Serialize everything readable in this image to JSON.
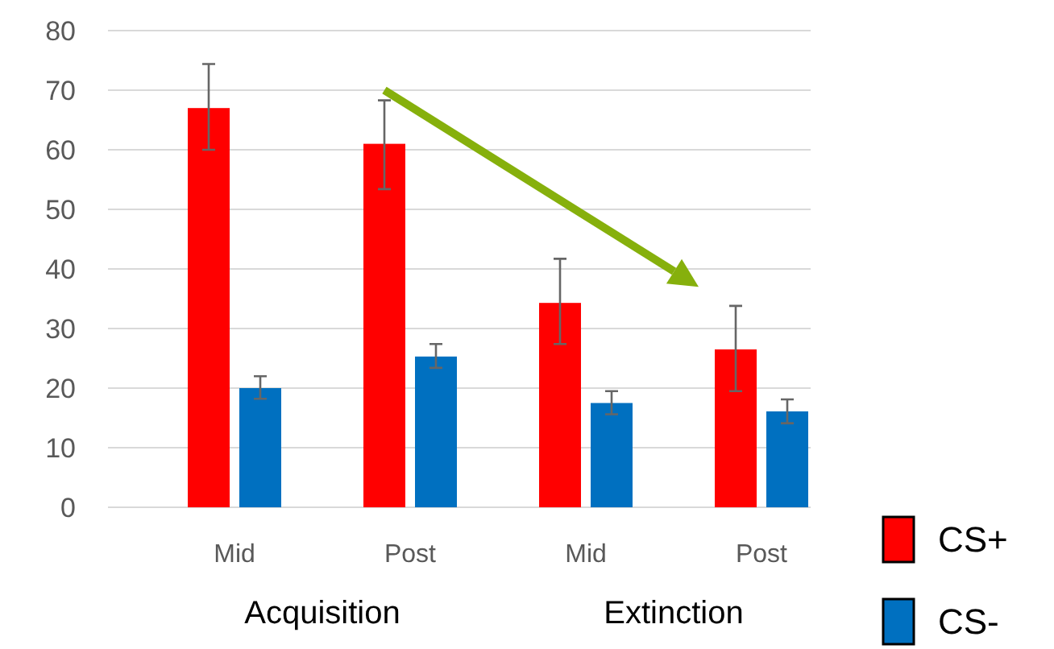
{
  "chart_data": {
    "type": "bar",
    "categories": [
      "Mid",
      "Post",
      "Mid",
      "Post"
    ],
    "series": [
      {
        "name": "CS+",
        "color": "#ff0000",
        "values": [
          67.0,
          61.0,
          34.3,
          26.5
        ],
        "errors": [
          [
            60.0,
            74.4
          ],
          [
            53.4,
            68.3
          ],
          [
            27.4,
            41.7
          ],
          [
            19.5,
            33.8
          ]
        ]
      },
      {
        "name": "CS-",
        "color": "#0070c0",
        "values": [
          20.0,
          25.3,
          17.5,
          16.1
        ],
        "errors": [
          [
            18.2,
            22.0
          ],
          [
            23.4,
            27.4
          ],
          [
            15.6,
            19.5
          ],
          [
            14.1,
            18.1
          ]
        ]
      }
    ],
    "annotations": [
      "Acquisition",
      "Extinction"
    ],
    "ylim": [
      0,
      80
    ],
    "yticks": [
      0,
      10,
      20,
      30,
      40,
      50,
      60,
      70,
      80
    ],
    "grid": "y",
    "legend": "bottom right"
  }
}
